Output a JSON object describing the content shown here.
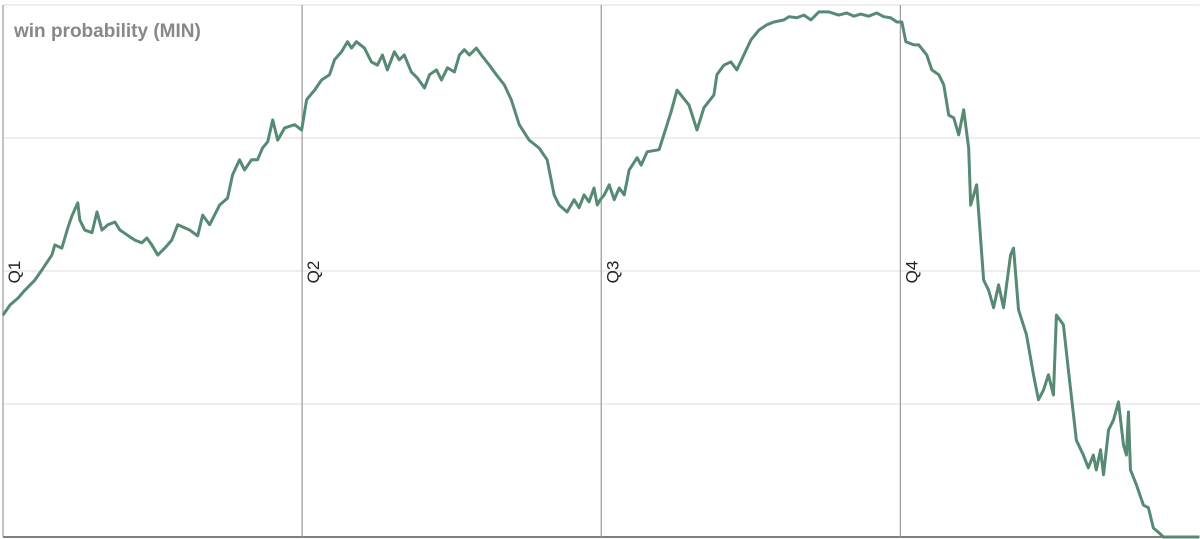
{
  "chart_data": {
    "type": "line",
    "title": "win probability (MIN)",
    "color": "#568a73",
    "grid": true,
    "xlim": [
      0,
      48
    ],
    "ylim": [
      0,
      100
    ],
    "yticks": [
      0,
      25,
      50,
      75,
      100
    ],
    "xticks": [
      {
        "value": 0,
        "label": "Q1"
      },
      {
        "value": 12,
        "label": "Q2"
      },
      {
        "value": 24,
        "label": "Q3"
      },
      {
        "value": 36,
        "label": "Q4"
      }
    ],
    "x": [
      0,
      0.28,
      0.6,
      0.88,
      1.28,
      1.56,
      1.96,
      2.08,
      2.36,
      2.6,
      2.76,
      3.0,
      3.08,
      3.28,
      3.57,
      3.77,
      3.97,
      4.21,
      4.49,
      4.69,
      4.97,
      5.29,
      5.57,
      5.77,
      5.97,
      6.21,
      6.49,
      6.77,
      7.01,
      7.49,
      7.81,
      8.01,
      8.29,
      8.69,
      9.01,
      9.21,
      9.49,
      9.69,
      9.97,
      10.21,
      10.41,
      10.62,
      10.82,
      11.02,
      11.3,
      11.7,
      11.98,
      12.18,
      12.5,
      12.78,
      13.1,
      13.3,
      13.58,
      13.82,
      13.98,
      14.18,
      14.5,
      14.78,
      15.02,
      15.22,
      15.42,
      15.7,
      15.9,
      16.1,
      16.38,
      16.62,
      16.91,
      17.11,
      17.39,
      17.59,
      17.83,
      18.11,
      18.31,
      18.51,
      18.71,
      18.99,
      19.19,
      19.51,
      19.79,
      20.11,
      20.39,
      20.71,
      21.11,
      21.51,
      21.83,
      22.11,
      22.31,
      22.63,
      22.91,
      23.11,
      23.31,
      23.51,
      23.71,
      23.84,
      23.96,
      24.12,
      24.32,
      24.52,
      24.72,
      24.92,
      25.12,
      25.44,
      25.6,
      25.84,
      26.32,
      26.64,
      26.8,
      27.04,
      27.52,
      27.84,
      28.12,
      28.52,
      28.64,
      28.92,
      29.2,
      29.44,
      29.72,
      30.0,
      30.33,
      30.65,
      30.93,
      31.33,
      31.53,
      31.85,
      32.13,
      32.41,
      32.73,
      33.13,
      33.53,
      33.85,
      34.13,
      34.41,
      34.73,
      35.05,
      35.33,
      35.61,
      35.86,
      36.06,
      36.22,
      36.54,
      36.74,
      37.06,
      37.26,
      37.54,
      37.74,
      37.94,
      38.14,
      38.34,
      38.54,
      38.74,
      38.82,
      39.06,
      39.34,
      39.54,
      39.74,
      39.94,
      40.14,
      40.42,
      40.54,
      40.74,
      41.06,
      41.34,
      41.54,
      41.74,
      41.94,
      42.14,
      42.26,
      42.54,
      42.74,
      43.06,
      43.34,
      43.54,
      43.74,
      43.86,
      44.03,
      44.15,
      44.35,
      44.55,
      44.75,
      44.95,
      45.07,
      45.15,
      45.23,
      45.47,
      45.75,
      45.95,
      46.15,
      46.35,
      46.55,
      48
    ],
    "values": [
      41.7,
      43.6,
      44.9,
      46.4,
      48.3,
      50.2,
      53.0,
      54.9,
      54.3,
      58.1,
      60.3,
      62.8,
      59.6,
      57.7,
      57.2,
      61.1,
      57.7,
      58.7,
      59.2,
      57.7,
      56.8,
      55.8,
      55.3,
      56.2,
      54.9,
      53.0,
      54.3,
      55.8,
      58.7,
      57.7,
      56.6,
      60.5,
      58.7,
      62.4,
      63.7,
      68.1,
      70.9,
      69.0,
      70.9,
      70.9,
      73.1,
      74.3,
      78.4,
      74.6,
      76.9,
      77.5,
      76.5,
      82.2,
      84.0,
      85.9,
      86.9,
      89.7,
      91.2,
      93.1,
      91.9,
      93.1,
      91.9,
      89.3,
      88.7,
      90.6,
      87.8,
      91.2,
      89.7,
      90.6,
      87.4,
      86.3,
      84.4,
      86.9,
      87.8,
      85.9,
      88.2,
      87.4,
      90.6,
      91.6,
      90.6,
      91.9,
      90.6,
      88.7,
      86.9,
      85.0,
      82.2,
      77.5,
      74.6,
      73.1,
      70.9,
      64.3,
      62.4,
      61.1,
      63.4,
      61.9,
      64.3,
      63.0,
      65.6,
      62.4,
      63.4,
      64.3,
      66.2,
      63.4,
      65.6,
      64.3,
      69.0,
      71.3,
      69.9,
      72.4,
      72.8,
      77.5,
      79.9,
      84.0,
      81.2,
      76.5,
      80.7,
      83.1,
      86.9,
      88.7,
      89.3,
      87.8,
      90.6,
      93.4,
      95.3,
      96.3,
      96.8,
      97.2,
      97.8,
      97.6,
      98.1,
      97.2,
      98.7,
      98.7,
      98.1,
      98.5,
      97.9,
      98.3,
      97.9,
      98.5,
      97.8,
      97.6,
      96.8,
      96.8,
      93.1,
      92.5,
      92.5,
      90.6,
      87.8,
      86.9,
      85.0,
      79.3,
      78.8,
      75.6,
      80.3,
      73.1,
      62.4,
      66.2,
      48.3,
      46.4,
      43.1,
      47.4,
      43.1,
      53.0,
      54.3,
      42.7,
      38.0,
      30.5,
      25.8,
      27.6,
      30.5,
      26.7,
      41.7,
      39.9,
      31.4,
      18.2,
      15.4,
      13.0,
      15.4,
      12.6,
      16.4,
      11.7,
      20.1,
      22.0,
      25.4,
      17.3,
      15.4,
      23.5,
      12.6,
      9.8,
      6.0,
      5.5,
      1.7,
      0.9,
      0,
      0
    ]
  }
}
